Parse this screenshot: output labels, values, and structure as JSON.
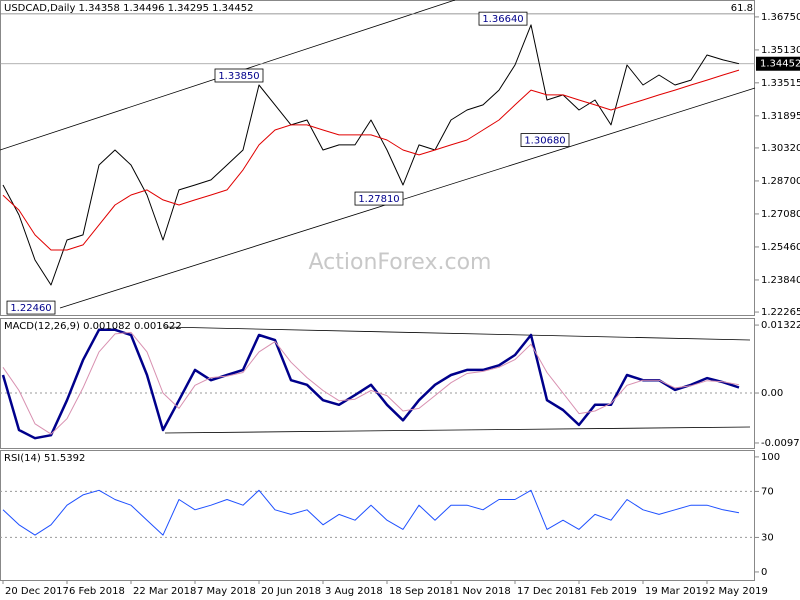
{
  "header": "USDCAD,Daily  1.34358 1.34496 1.34295 1.34452",
  "watermark": "ActionForex.com",
  "chart_data": [
    {
      "type": "line",
      "xlim": [
        -1.5,
        376
      ],
      "ylim": [
        1.2212,
        1.3758
      ],
      "x": [
        0,
        8,
        16,
        24,
        32,
        40,
        48,
        56,
        64,
        72,
        80,
        88,
        96,
        104,
        112,
        120,
        128,
        136,
        144,
        152,
        160,
        168,
        176,
        184,
        192,
        200,
        208,
        216,
        224,
        232,
        240,
        248,
        256,
        264,
        272,
        280,
        288,
        296,
        304,
        312,
        320,
        328,
        336,
        344,
        352,
        360,
        368
      ],
      "yticks": [
        {
          "value": 1.3675,
          "label": "1.36750"
        },
        {
          "value": 1.3513,
          "label": "1.35130"
        },
        1.33515,
        1.31895,
        {
          "value": 1.3032,
          "label": "1.30320"
        },
        {
          "value": 1.287,
          "label": "1.28700"
        },
        {
          "value": 1.2708,
          "label": "1.27080"
        },
        {
          "value": 1.2546,
          "label": "1.25460"
        },
        {
          "value": 1.2384,
          "label": "1.23840"
        },
        1.22265
      ],
      "series": [
        {
          "name": "USDCAD",
          "color": "#000000",
          "values": [
            1.285,
            1.2703,
            1.2482,
            1.2359,
            1.258,
            1.2605,
            1.2948,
            1.3022,
            1.2948,
            1.2801,
            1.258,
            1.2826,
            1.285,
            1.2875,
            1.2948,
            1.3022,
            1.3341,
            1.3243,
            1.3145,
            1.3169,
            1.3022,
            1.3047,
            1.3047,
            1.3169,
            1.3022,
            1.285,
            1.3047,
            1.3022,
            1.3169,
            1.3218,
            1.3243,
            1.3316,
            1.3439,
            1.3636,
            1.3267,
            1.3292,
            1.3218,
            1.3267,
            1.3145,
            1.3439,
            1.3341,
            1.339,
            1.3341,
            1.3365,
            1.3488,
            1.3464,
            1.34452
          ]
        },
        {
          "color": "#e00000",
          "values": [
            1.28,
            1.2727,
            1.2605,
            1.2531,
            1.2531,
            1.2556,
            1.2654,
            1.2752,
            1.2801,
            1.2826,
            1.2777,
            1.2752,
            1.2777,
            1.2801,
            1.2826,
            1.2924,
            1.3047,
            1.312,
            1.3145,
            1.3145,
            1.312,
            1.3096,
            1.3096,
            1.3096,
            1.3071,
            1.3022,
            1.2998,
            1.3022,
            1.3047,
            1.3071,
            1.312,
            1.3169,
            1.3243,
            1.3316,
            1.3292,
            1.3292,
            1.3267,
            1.3243,
            1.3218,
            1.3243,
            1.3267,
            1.3292,
            1.3316,
            1.3341,
            1.3365,
            1.339,
            1.3414
          ]
        }
      ],
      "last_price": {
        "value": 1.34452,
        "label": "1.34452"
      },
      "fib_level": {
        "value": 1.369,
        "label": "61.8"
      },
      "annotations": [
        {
          "x": 26,
          "value": 1.2246,
          "label": "1.22460"
        },
        {
          "x": 130,
          "value": 1.3385,
          "label": "1.33850"
        },
        {
          "x": 262,
          "value": 1.3664,
          "label": "1.36640"
        },
        {
          "x": 200,
          "value": 1.2781,
          "label": "1.27810"
        },
        {
          "x": 283,
          "value": 1.3068,
          "label": "1.30680"
        }
      ]
    },
    {
      "type": "line",
      "title": "MACD(12,26,9) 0.001082 0.001622",
      "xlim": [
        -1.5,
        376
      ],
      "ylim": [
        -0.0107,
        0.0146
      ],
      "x": [
        0,
        8,
        16,
        24,
        32,
        40,
        48,
        56,
        64,
        72,
        80,
        88,
        96,
        104,
        112,
        120,
        128,
        136,
        144,
        152,
        160,
        168,
        176,
        184,
        192,
        200,
        208,
        216,
        224,
        232,
        240,
        248,
        256,
        264,
        272,
        280,
        288,
        296,
        304,
        312,
        320,
        328,
        336,
        344,
        352,
        360,
        368
      ],
      "yticks": [
        0.013224,
        {
          "value": 0,
          "label": "0.00"
        },
        -0.009721
      ],
      "dotted_levels": [
        0
      ],
      "series": [
        {
          "color": "#00008b",
          "width": 2.5,
          "values": [
            0.0035,
            -0.0072,
            -0.0088,
            -0.0082,
            -0.0014,
            0.0064,
            0.0123,
            0.0123,
            0.0113,
            0.0035,
            -0.0072,
            -0.0014,
            0.0045,
            0.0025,
            0.0035,
            0.0045,
            0.0113,
            0.0103,
            0.0025,
            0.0016,
            -0.0014,
            -0.0023,
            -0.0004,
            0.0016,
            -0.0023,
            -0.0053,
            -0.0014,
            0.0016,
            0.0035,
            0.0045,
            0.0045,
            0.0054,
            0.0074,
            0.0113,
            -0.0014,
            -0.0033,
            -0.0062,
            -0.0023,
            -0.0023,
            0.0035,
            0.0025,
            0.0025,
            0.0006,
            0.0016,
            0.0029,
            0.0021,
            0.001082
          ]
        },
        {
          "color": "#d890b0",
          "width": 1,
          "values": [
            0.005,
            0.0005,
            -0.006,
            -0.008,
            -0.005,
            0.001,
            0.008,
            0.0115,
            0.0118,
            0.008,
            0.0,
            -0.003,
            0.0015,
            0.003,
            0.0033,
            0.004,
            0.008,
            0.01,
            0.006,
            0.003,
            0.0005,
            -0.0015,
            -0.0012,
            0.0005,
            -0.0005,
            -0.0035,
            -0.003,
            -0.0005,
            0.002,
            0.0038,
            0.0042,
            0.005,
            0.0065,
            0.0095,
            0.004,
            0.0,
            -0.004,
            -0.0035,
            -0.002,
            0.0015,
            0.0025,
            0.0025,
            0.001,
            0.0014,
            0.0024,
            0.0022,
            0.001622
          ]
        }
      ]
    },
    {
      "type": "line",
      "title": "RSI(14) 51.5392",
      "xlim": [
        -1.5,
        376
      ],
      "ylim": [
        -7,
        106
      ],
      "x": [
        0,
        8,
        16,
        24,
        32,
        40,
        48,
        56,
        64,
        72,
        80,
        88,
        96,
        104,
        112,
        120,
        128,
        136,
        144,
        152,
        160,
        168,
        176,
        184,
        192,
        200,
        208,
        216,
        224,
        232,
        240,
        248,
        256,
        264,
        272,
        280,
        288,
        296,
        304,
        312,
        320,
        328,
        336,
        344,
        352,
        360,
        368
      ],
      "yticks": [
        100,
        70,
        30,
        0
      ],
      "dotted_levels": [
        70,
        30
      ],
      "xticks": [
        {
          "value": 0,
          "label": "20 Dec 2017"
        },
        {
          "value": 32,
          "label": "6 Feb 2018"
        },
        {
          "value": 64,
          "label": "22 Mar 2018"
        },
        {
          "value": 96,
          "label": "7 May 2018"
        },
        {
          "value": 128,
          "label": "20 Jun 2018"
        },
        {
          "value": 160,
          "label": "3 Aug 2018"
        },
        {
          "value": 192,
          "label": "18 Sep 2018"
        },
        {
          "value": 224,
          "label": "1 Nov 2018"
        },
        {
          "value": 256,
          "label": "17 Dec 2018"
        },
        {
          "value": 288,
          "label": "1 Feb 2019"
        },
        {
          "value": 320,
          "label": "19 Mar 2019"
        },
        {
          "value": 352,
          "label": "2 May 2019"
        }
      ],
      "series": [
        {
          "color": "#1e50ff",
          "width": 1,
          "values": [
            54,
            41,
            32,
            41,
            58,
            67,
            71,
            63,
            58,
            45,
            32,
            63,
            54,
            58,
            63,
            58,
            71,
            54,
            50,
            54,
            41,
            50,
            45,
            58,
            45,
            37,
            58,
            45,
            58,
            58,
            54,
            63,
            63,
            71,
            37,
            45,
            37,
            50,
            45,
            63,
            54,
            50,
            54,
            58,
            58,
            54,
            51.5392
          ]
        }
      ]
    }
  ]
}
